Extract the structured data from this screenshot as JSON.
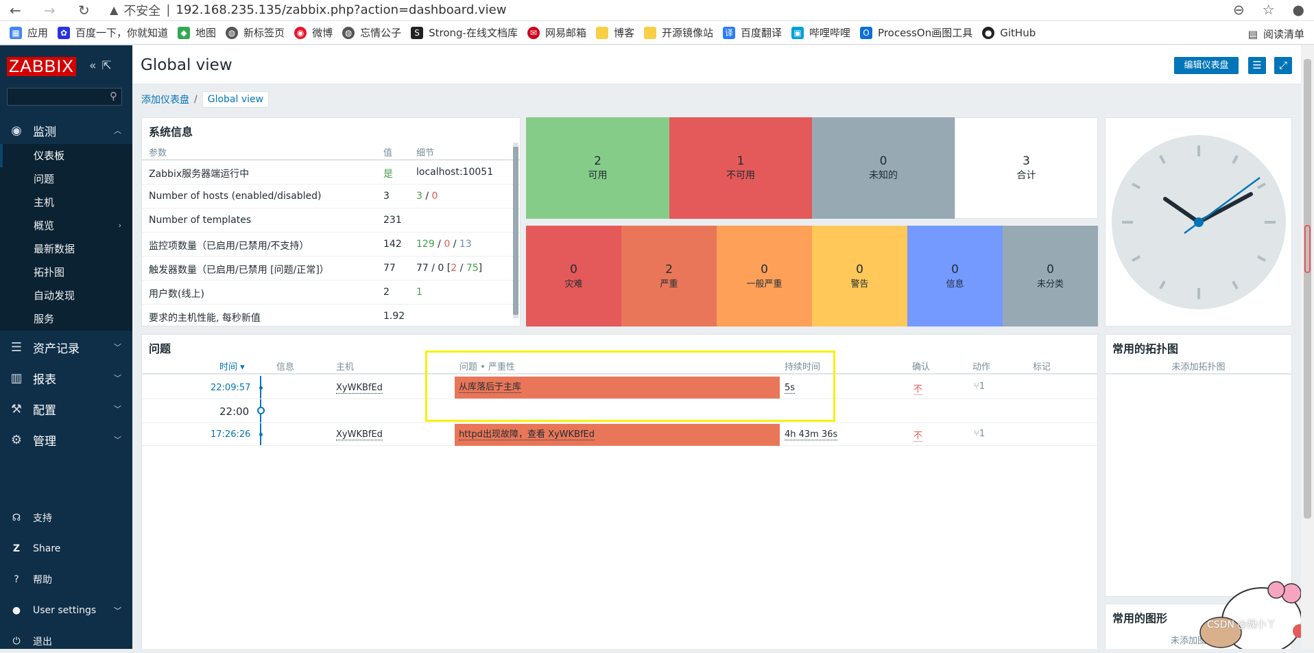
{
  "browser": {
    "insecure_label": "不安全",
    "url": "192.168.235.135/zabbix.php?action=dashboard.view",
    "bookmarks": [
      "应用",
      "百度一下，你就知道",
      "地图",
      "新标签页",
      "微博",
      "忘情公子",
      "Strong-在线文档库",
      "网易邮箱",
      "博客",
      "开源镜像站",
      "百度翻译",
      "哔哩哔哩",
      "ProcessOn画图工具",
      "GitHub"
    ],
    "reading_list": "阅读清单"
  },
  "sidebar": {
    "logo": "ZABBIX",
    "monitor": "监测",
    "sub_items": [
      "仪表板",
      "问题",
      "主机",
      "概览",
      "最新数据",
      "拓扑图",
      "自动发现",
      "服务"
    ],
    "inventory": "资产记录",
    "reports": "报表",
    "config": "配置",
    "admin": "管理",
    "support": "支持",
    "share": "Share",
    "help": "帮助",
    "user_settings": "User settings",
    "logout": "退出"
  },
  "header": {
    "title": "Global view",
    "edit_button": "编辑仪表盘"
  },
  "breadcrumb": {
    "parent": "添加仪表盘",
    "sep": "/",
    "current": "Global view"
  },
  "system_info": {
    "title": "系统信息",
    "headers": [
      "参数",
      "值",
      "细节"
    ],
    "rows": [
      {
        "param": "Zabbix服务器端运行中",
        "value": "是",
        "detail": "localhost:10051"
      },
      {
        "param": "Number of hosts (enabled/disabled)",
        "value": "3",
        "detail_a": "3",
        "detail_sep": " / ",
        "detail_b": "0"
      },
      {
        "param": "Number of templates",
        "value": "231",
        "detail": ""
      },
      {
        "param": "监控项数量（已启用/已禁用/不支持）",
        "value": "142",
        "detail_a": "129",
        "detail_sep1": " / ",
        "detail_b": "0",
        "detail_sep2": " / ",
        "detail_c": "13"
      },
      {
        "param": "触发器数量（已启用/已禁用 [问题/正常]）",
        "value": "77",
        "detail_a": "77 / 0 [",
        "detail_b": "2",
        "detail_sep": " / ",
        "detail_c": "75",
        "detail_end": "]"
      },
      {
        "param": "用户数(线上)",
        "value": "2",
        "detail": "1"
      },
      {
        "param": "要求的主机性能, 每秒新值",
        "value": "1.92",
        "detail": ""
      }
    ]
  },
  "host_availability": [
    {
      "count": "2",
      "label": "可用",
      "color": "#86cc89"
    },
    {
      "count": "1",
      "label": "不可用",
      "color": "#e45959"
    },
    {
      "count": "0",
      "label": "未知的",
      "color": "#97aab3"
    },
    {
      "count": "3",
      "label": "合计",
      "color": "#ffffff"
    }
  ],
  "problems_by_severity": [
    {
      "count": "0",
      "label": "灾难",
      "color": "#e45959"
    },
    {
      "count": "2",
      "label": "严重",
      "color": "#e97659"
    },
    {
      "count": "0",
      "label": "一般严重",
      "color": "#ffa059"
    },
    {
      "count": "0",
      "label": "警告",
      "color": "#ffc859"
    },
    {
      "count": "0",
      "label": "信息",
      "color": "#7499ff"
    },
    {
      "count": "0",
      "label": "未分类",
      "color": "#97aab3"
    }
  ],
  "problems": {
    "title": "问题",
    "headers": {
      "time": "时间 ▾",
      "info": "信息",
      "host": "主机",
      "problem": "问题 • 严重性",
      "duration": "持续时间",
      "ack": "确认",
      "actions": "动作",
      "tags": "标记"
    },
    "rows": [
      {
        "time": "22:09:57",
        "host": "XyWKBfEd",
        "problem": "从库落后于主库",
        "duration": "5s",
        "ack": "不",
        "actions": "1"
      },
      {
        "time": "17:26:26",
        "host": "XyWKBfEd",
        "problem": "httpd出现故障，查看 XyWKBfEd",
        "duration": "4h 43m 36s",
        "ack": "不",
        "actions": "1"
      }
    ],
    "time_marker": "22:00"
  },
  "maps_widget": {
    "title": "常用的拓扑图",
    "empty": "未添加拓扑图"
  },
  "graphs_widget": {
    "title": "常用的图形",
    "empty": "未添加图形"
  },
  "watermark": "CSDN @魏小丫"
}
